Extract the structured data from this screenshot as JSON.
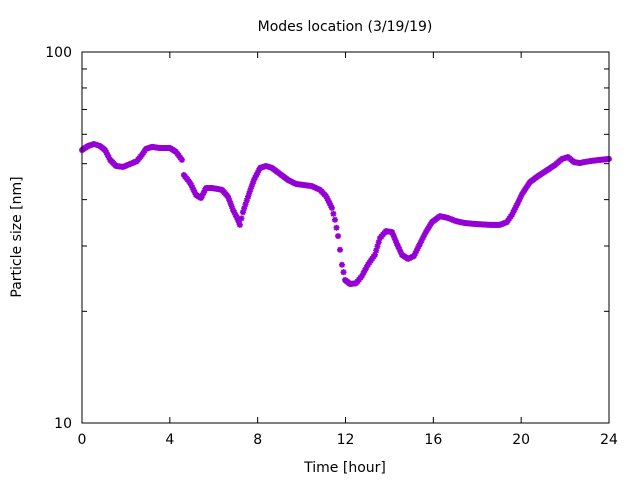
{
  "chart_data": {
    "type": "scatter",
    "title": "Modes location (3/19/19)",
    "xlabel": "Time [hour]",
    "ylabel": "Particle size [nm]",
    "xlim": [
      0,
      24
    ],
    "ylim": [
      10,
      100
    ],
    "yscale": "log",
    "grid": false,
    "legend": "none",
    "marker_color": "#9400d3",
    "x_ticks": [
      "0",
      "4",
      "8",
      "12",
      "16",
      "20",
      "24"
    ],
    "y_ticks": [
      "10",
      "100"
    ],
    "series": [
      {
        "name": "mode",
        "x": [
          0,
          0.27,
          0.55,
          0.82,
          1.05,
          1.28,
          1.55,
          1.87,
          2.19,
          2.5,
          2.73,
          2.91,
          3.19,
          3.55,
          4.01,
          4.28,
          4.55,
          4.64,
          4.92,
          5.19,
          5.42,
          5.65,
          5.92,
          6.38,
          6.65,
          6.88,
          7.1,
          7.19,
          7.33,
          7.56,
          7.83,
          8.11,
          8.38,
          8.65,
          9.02,
          9.38,
          9.74,
          10.11,
          10.47,
          10.84,
          11.11,
          11.38,
          11.52,
          11.66,
          11.75,
          11.84,
          11.98,
          12.2,
          12.48,
          12.75,
          13.02,
          13.34,
          13.57,
          13.84,
          14.12,
          14.34,
          14.57,
          14.85,
          15.12,
          15.39,
          15.66,
          15.94,
          16.3,
          16.67,
          17.03,
          17.44,
          17.9,
          18.58,
          19.03,
          19.35,
          19.58,
          19.85,
          20.04,
          20.4,
          20.77,
          21.13,
          21.54,
          21.86,
          22.13,
          22.4,
          22.68,
          22.86,
          23.13,
          23.59,
          24.0
        ],
        "y": [
          54.4,
          55.8,
          56.5,
          55.8,
          54.4,
          51.2,
          49.3,
          49.0,
          49.9,
          50.8,
          52.8,
          54.8,
          55.5,
          55.1,
          55.1,
          53.8,
          51.2,
          46.6,
          44.4,
          41.2,
          40.4,
          43.0,
          43.0,
          42.5,
          40.7,
          37.5,
          35.3,
          34.2,
          37.0,
          40.7,
          45.2,
          48.7,
          49.3,
          48.7,
          46.9,
          45.2,
          44.1,
          43.8,
          43.5,
          42.5,
          40.9,
          38.0,
          35.3,
          31.9,
          29.3,
          26.7,
          24.3,
          23.7,
          23.8,
          24.9,
          26.7,
          28.4,
          31.5,
          32.9,
          32.7,
          30.4,
          28.4,
          27.7,
          28.2,
          30.4,
          32.7,
          34.8,
          36.1,
          35.7,
          35.0,
          34.6,
          34.4,
          34.2,
          34.2,
          34.8,
          36.4,
          39.2,
          41.4,
          44.6,
          46.3,
          47.8,
          49.6,
          51.5,
          52.1,
          50.5,
          50.2,
          50.5,
          50.8,
          51.2,
          51.5
        ]
      }
    ]
  }
}
